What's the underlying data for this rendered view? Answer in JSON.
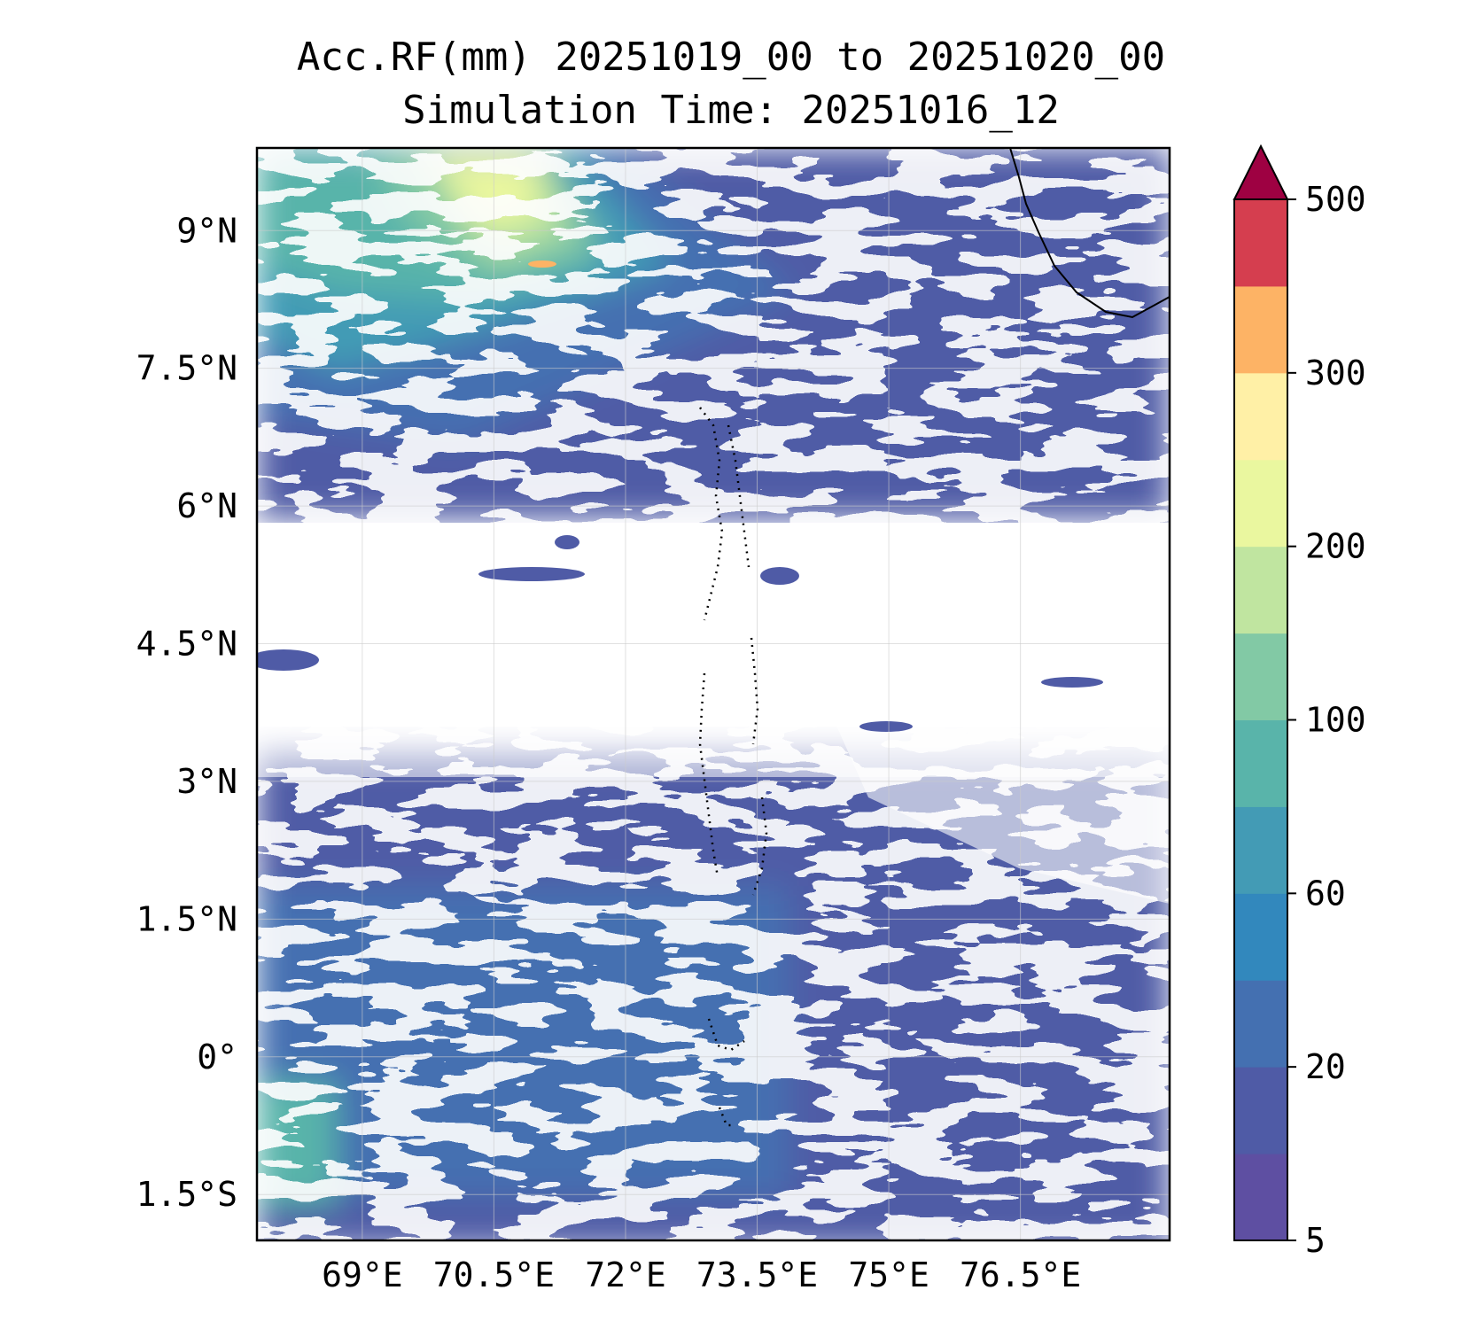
{
  "title": {
    "line1": "Acc.RF(mm) 20251019_00 to 20251020_00",
    "line2": "Simulation Time: 20251016_12"
  },
  "map": {
    "lon_range": [
      67.8,
      78.2
    ],
    "lat_range": [
      -2.0,
      9.9
    ],
    "lon_ticks": [
      {
        "value": 69,
        "label": "69°E"
      },
      {
        "value": 70.5,
        "label": "70.5°E"
      },
      {
        "value": 72,
        "label": "72°E"
      },
      {
        "value": 73.5,
        "label": "73.5°E"
      },
      {
        "value": 75,
        "label": "75°E"
      },
      {
        "value": 76.5,
        "label": "76.5°E"
      }
    ],
    "lat_ticks": [
      {
        "value": 9,
        "label": "9°N"
      },
      {
        "value": 7.5,
        "label": "7.5°N"
      },
      {
        "value": 6,
        "label": "6°N"
      },
      {
        "value": 4.5,
        "label": "4.5°N"
      },
      {
        "value": 3,
        "label": "3°N"
      },
      {
        "value": 1.5,
        "label": "1.5°N"
      },
      {
        "value": 0,
        "label": "0°"
      },
      {
        "value": -1.5,
        "label": "1.5°S"
      }
    ]
  },
  "colorbar": {
    "extend": "max",
    "levels": [
      5,
      10,
      20,
      40,
      60,
      80,
      100,
      150,
      200,
      250,
      300,
      350,
      500
    ],
    "colors": [
      "#5e4fa2",
      "#4f5ba6",
      "#4470b1",
      "#3288bd",
      "#439bb5",
      "#59b4aa",
      "#82c9a5",
      "#c0e5a0",
      "#eaf79f",
      "#fff0a6",
      "#fdb365",
      "#d53e4f"
    ],
    "extend_color": "#9e0142",
    "ticks": [
      {
        "value": 5,
        "label": "5"
      },
      {
        "value": 20,
        "label": "20"
      },
      {
        "value": 60,
        "label": "60"
      },
      {
        "value": 100,
        "label": "100"
      },
      {
        "value": 200,
        "label": "200"
      },
      {
        "value": 300,
        "label": "300"
      },
      {
        "value": 500,
        "label": "500"
      }
    ]
  }
}
